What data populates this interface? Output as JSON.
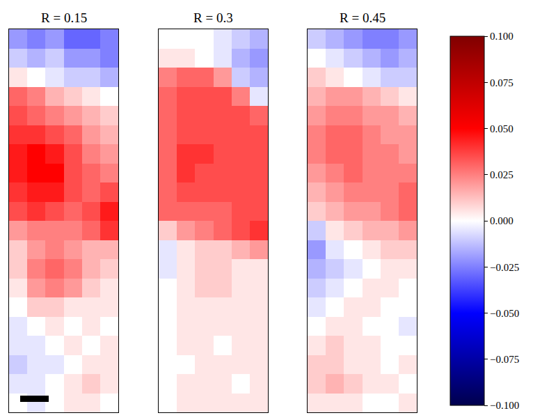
{
  "chart_data": [
    {
      "type": "heatmap",
      "title": "R = 0.15",
      "tick_labels": false,
      "z": [
        [
          -0.02,
          -0.025,
          -0.02,
          -0.03,
          -0.03,
          -0.025
        ],
        [
          -0.01,
          -0.015,
          -0.01,
          -0.02,
          -0.02,
          -0.025
        ],
        [
          0.005,
          0.0,
          -0.005,
          -0.01,
          -0.01,
          -0.015
        ],
        [
          0.03,
          0.025,
          0.015,
          0.01,
          0.005,
          0.0
        ],
        [
          0.035,
          0.03,
          0.025,
          0.02,
          0.015,
          0.01
        ],
        [
          0.04,
          0.04,
          0.035,
          0.03,
          0.02,
          0.015
        ],
        [
          0.045,
          0.05,
          0.045,
          0.035,
          0.025,
          0.02
        ],
        [
          0.045,
          0.05,
          0.05,
          0.035,
          0.03,
          0.025
        ],
        [
          0.04,
          0.045,
          0.045,
          0.035,
          0.03,
          0.035
        ],
        [
          0.035,
          0.04,
          0.035,
          0.03,
          0.035,
          0.045
        ],
        [
          0.02,
          0.025,
          0.025,
          0.025,
          0.03,
          0.04
        ],
        [
          0.01,
          0.02,
          0.025,
          0.02,
          0.015,
          0.015
        ],
        [
          0.01,
          0.025,
          0.03,
          0.025,
          0.015,
          0.01
        ],
        [
          0.005,
          0.02,
          0.025,
          0.02,
          0.01,
          0.005
        ],
        [
          0.0,
          0.01,
          0.01,
          0.005,
          0.005,
          0.005
        ],
        [
          -0.005,
          0.0,
          0.005,
          0.0,
          0.005,
          0.0
        ],
        [
          -0.005,
          -0.005,
          0.0,
          0.005,
          0.0,
          0.005
        ],
        [
          -0.01,
          -0.005,
          -0.005,
          0.0,
          0.005,
          0.005
        ],
        [
          -0.005,
          -0.005,
          0.0,
          0.005,
          0.01,
          0.005
        ],
        [
          0.0,
          -0.005,
          0.0,
          0.005,
          0.005,
          0.0
        ]
      ],
      "colorbar": {
        "range": [
          -0.1,
          0.1
        ],
        "ticks": [
          {
            "value": 0.1,
            "label": "0.100"
          },
          0.075,
          {
            "value": 0.05,
            "label": "0.050"
          },
          0.025,
          {
            "value": 0,
            "label": "0.000"
          },
          {
            "value": -0.025,
            "label": "−0.025"
          },
          {
            "value": -0.05,
            "label": "−0.050"
          },
          {
            "value": -0.075,
            "label": "−0.075"
          },
          {
            "value": -0.1,
            "label": "−0.100"
          }
        ]
      }
    },
    {
      "type": "heatmap",
      "title": "R = 0.3",
      "tick_labels": false,
      "z": [
        [
          0.0,
          0.0,
          0.0,
          -0.005,
          -0.01,
          -0.015
        ],
        [
          0.005,
          0.005,
          0.0,
          -0.005,
          -0.015,
          -0.02
        ],
        [
          0.025,
          0.03,
          0.03,
          0.02,
          -0.01,
          -0.015
        ],
        [
          0.03,
          0.035,
          0.035,
          0.035,
          0.025,
          -0.005
        ],
        [
          0.03,
          0.035,
          0.035,
          0.035,
          0.035,
          0.03
        ],
        [
          0.03,
          0.035,
          0.035,
          0.035,
          0.035,
          0.035
        ],
        [
          0.03,
          0.04,
          0.04,
          0.035,
          0.035,
          0.035
        ],
        [
          0.03,
          0.04,
          0.035,
          0.035,
          0.035,
          0.035
        ],
        [
          0.03,
          0.035,
          0.035,
          0.035,
          0.035,
          0.035
        ],
        [
          0.03,
          0.03,
          0.03,
          0.03,
          0.035,
          0.035
        ],
        [
          0.01,
          0.02,
          0.025,
          0.03,
          0.035,
          0.04
        ],
        [
          -0.005,
          0.005,
          0.01,
          0.01,
          0.015,
          0.02
        ],
        [
          -0.005,
          0.005,
          0.01,
          0.01,
          0.005,
          0.005
        ],
        [
          0.0,
          0.005,
          0.01,
          0.01,
          0.005,
          0.005
        ],
        [
          0.0,
          0.005,
          0.005,
          0.005,
          0.005,
          0.005
        ],
        [
          0.0,
          0.005,
          0.005,
          0.005,
          0.005,
          0.005
        ],
        [
          0.0,
          0.005,
          0.005,
          0.0,
          0.005,
          0.005
        ],
        [
          0.0,
          0.0,
          0.005,
          0.005,
          0.005,
          0.005
        ],
        [
          0.0,
          0.005,
          0.005,
          0.005,
          0.0,
          0.005
        ],
        [
          0.0,
          0.005,
          0.005,
          0.005,
          0.005,
          0.005
        ]
      ],
      "colorbar": {
        "range": [
          -0.1,
          0.1
        ],
        "ticks": [
          {
            "value": 0.1,
            "label": "0.100"
          },
          0.075,
          {
            "value": 0.05,
            "label": "0.050"
          },
          0.025,
          {
            "value": 0,
            "label": "0.000"
          },
          {
            "value": -0.025,
            "label": "−0.025"
          },
          {
            "value": -0.05,
            "label": "−0.050"
          },
          {
            "value": -0.075,
            "label": "−0.075"
          },
          {
            "value": -0.1,
            "label": "−0.100"
          }
        ]
      }
    },
    {
      "type": "heatmap",
      "title": "R = 0.45",
      "tick_labels": false,
      "z": [
        [
          -0.01,
          -0.015,
          -0.02,
          -0.025,
          -0.025,
          -0.02
        ],
        [
          0.0,
          -0.005,
          -0.01,
          -0.015,
          -0.02,
          -0.015
        ],
        [
          0.01,
          0.005,
          0.0,
          -0.005,
          -0.01,
          -0.01
        ],
        [
          0.015,
          0.02,
          0.02,
          0.015,
          0.01,
          0.005
        ],
        [
          0.02,
          0.025,
          0.025,
          0.02,
          0.02,
          0.015
        ],
        [
          0.025,
          0.03,
          0.03,
          0.025,
          0.02,
          0.02
        ],
        [
          0.025,
          0.03,
          0.03,
          0.025,
          0.025,
          0.02
        ],
        [
          0.02,
          0.025,
          0.03,
          0.025,
          0.025,
          0.025
        ],
        [
          0.015,
          0.02,
          0.025,
          0.025,
          0.025,
          0.03
        ],
        [
          0.01,
          0.015,
          0.02,
          0.02,
          0.025,
          0.03
        ],
        [
          -0.01,
          0.005,
          0.01,
          0.015,
          0.015,
          0.02
        ],
        [
          -0.02,
          -0.005,
          0.0,
          0.005,
          0.01,
          0.01
        ],
        [
          -0.015,
          -0.01,
          -0.005,
          0.0,
          0.005,
          0.005
        ],
        [
          -0.01,
          -0.005,
          0.0,
          0.005,
          0.005,
          0.0
        ],
        [
          -0.005,
          0.0,
          0.005,
          0.005,
          0.0,
          0.0
        ],
        [
          0.0,
          0.005,
          0.005,
          0.0,
          0.0,
          -0.005
        ],
        [
          0.005,
          0.01,
          0.005,
          0.005,
          0.0,
          0.0
        ],
        [
          0.01,
          0.01,
          0.005,
          0.005,
          0.0,
          0.005
        ],
        [
          0.01,
          0.015,
          0.01,
          0.005,
          0.005,
          0.0
        ],
        [
          0.005,
          0.005,
          0.005,
          0.0,
          0.0,
          0.005
        ]
      ],
      "colorbar": {
        "range": [
          -0.1,
          0.1
        ],
        "ticks": [
          {
            "value": 0.1,
            "label": "0.100"
          },
          0.075,
          {
            "value": 0.05,
            "label": "0.050"
          },
          0.025,
          {
            "value": 0,
            "label": "0.000"
          },
          {
            "value": -0.025,
            "label": "−0.025"
          },
          {
            "value": -0.05,
            "label": "−0.050"
          },
          {
            "value": -0.075,
            "label": "−0.075"
          },
          {
            "value": -0.1,
            "label": "−0.100"
          }
        ]
      }
    }
  ]
}
